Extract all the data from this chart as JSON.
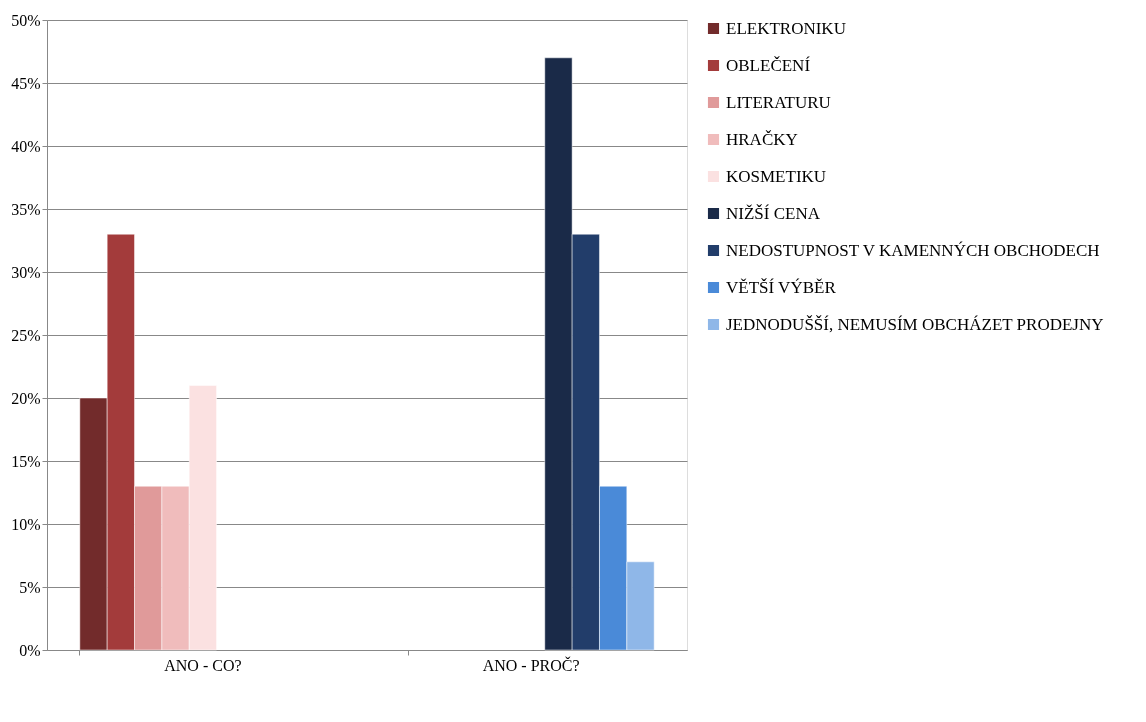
{
  "chart_data": {
    "type": "bar",
    "categories": [
      "ANO - CO?",
      "ANO - PROČ?"
    ],
    "series": [
      {
        "name": "ELEKTRONIKU",
        "color": "#722b2b",
        "values": [
          20,
          null
        ]
      },
      {
        "name": "OBLEČENÍ",
        "color": "#a33b3b",
        "values": [
          33,
          null
        ]
      },
      {
        "name": "LITERATURU",
        "color": "#e09a9a",
        "values": [
          13,
          null
        ]
      },
      {
        "name": "HRAČKY",
        "color": "#f0bcbc",
        "values": [
          13,
          null
        ]
      },
      {
        "name": "KOSMETIKU",
        "color": "#fbe1e1",
        "values": [
          21,
          null
        ]
      },
      {
        "name": "NIŽŠÍ CENA",
        "color": "#1a2a48",
        "values": [
          null,
          47
        ]
      },
      {
        "name": "NEDOSTUPNOST V KAMENNÝCH OBCHODECH",
        "color": "#223d6a",
        "values": [
          null,
          33
        ]
      },
      {
        "name": "VĚTŠÍ VÝBĚR",
        "color": "#4a8ad8",
        "values": [
          null,
          13
        ]
      },
      {
        "name": "JEDNODUŠŠÍ, NEMUSÍM OBCHÁZET PRODEJNY",
        "color": "#8fb7e8",
        "values": [
          null,
          7
        ]
      }
    ],
    "ylim": [
      0,
      50
    ],
    "yticks": [
      {
        "value": 0,
        "label": "0%"
      },
      {
        "value": 5,
        "label": "5%"
      },
      {
        "value": 10,
        "label": "10%"
      },
      {
        "value": 15,
        "label": "15%"
      },
      {
        "value": 20,
        "label": "20%"
      },
      {
        "value": 25,
        "label": "25%"
      },
      {
        "value": 30,
        "label": "30%"
      },
      {
        "value": 35,
        "label": "35%"
      },
      {
        "value": 40,
        "label": "40%"
      },
      {
        "value": 45,
        "label": "45%"
      },
      {
        "value": 50,
        "label": "50%"
      }
    ],
    "grid": "y",
    "legend": "right"
  }
}
